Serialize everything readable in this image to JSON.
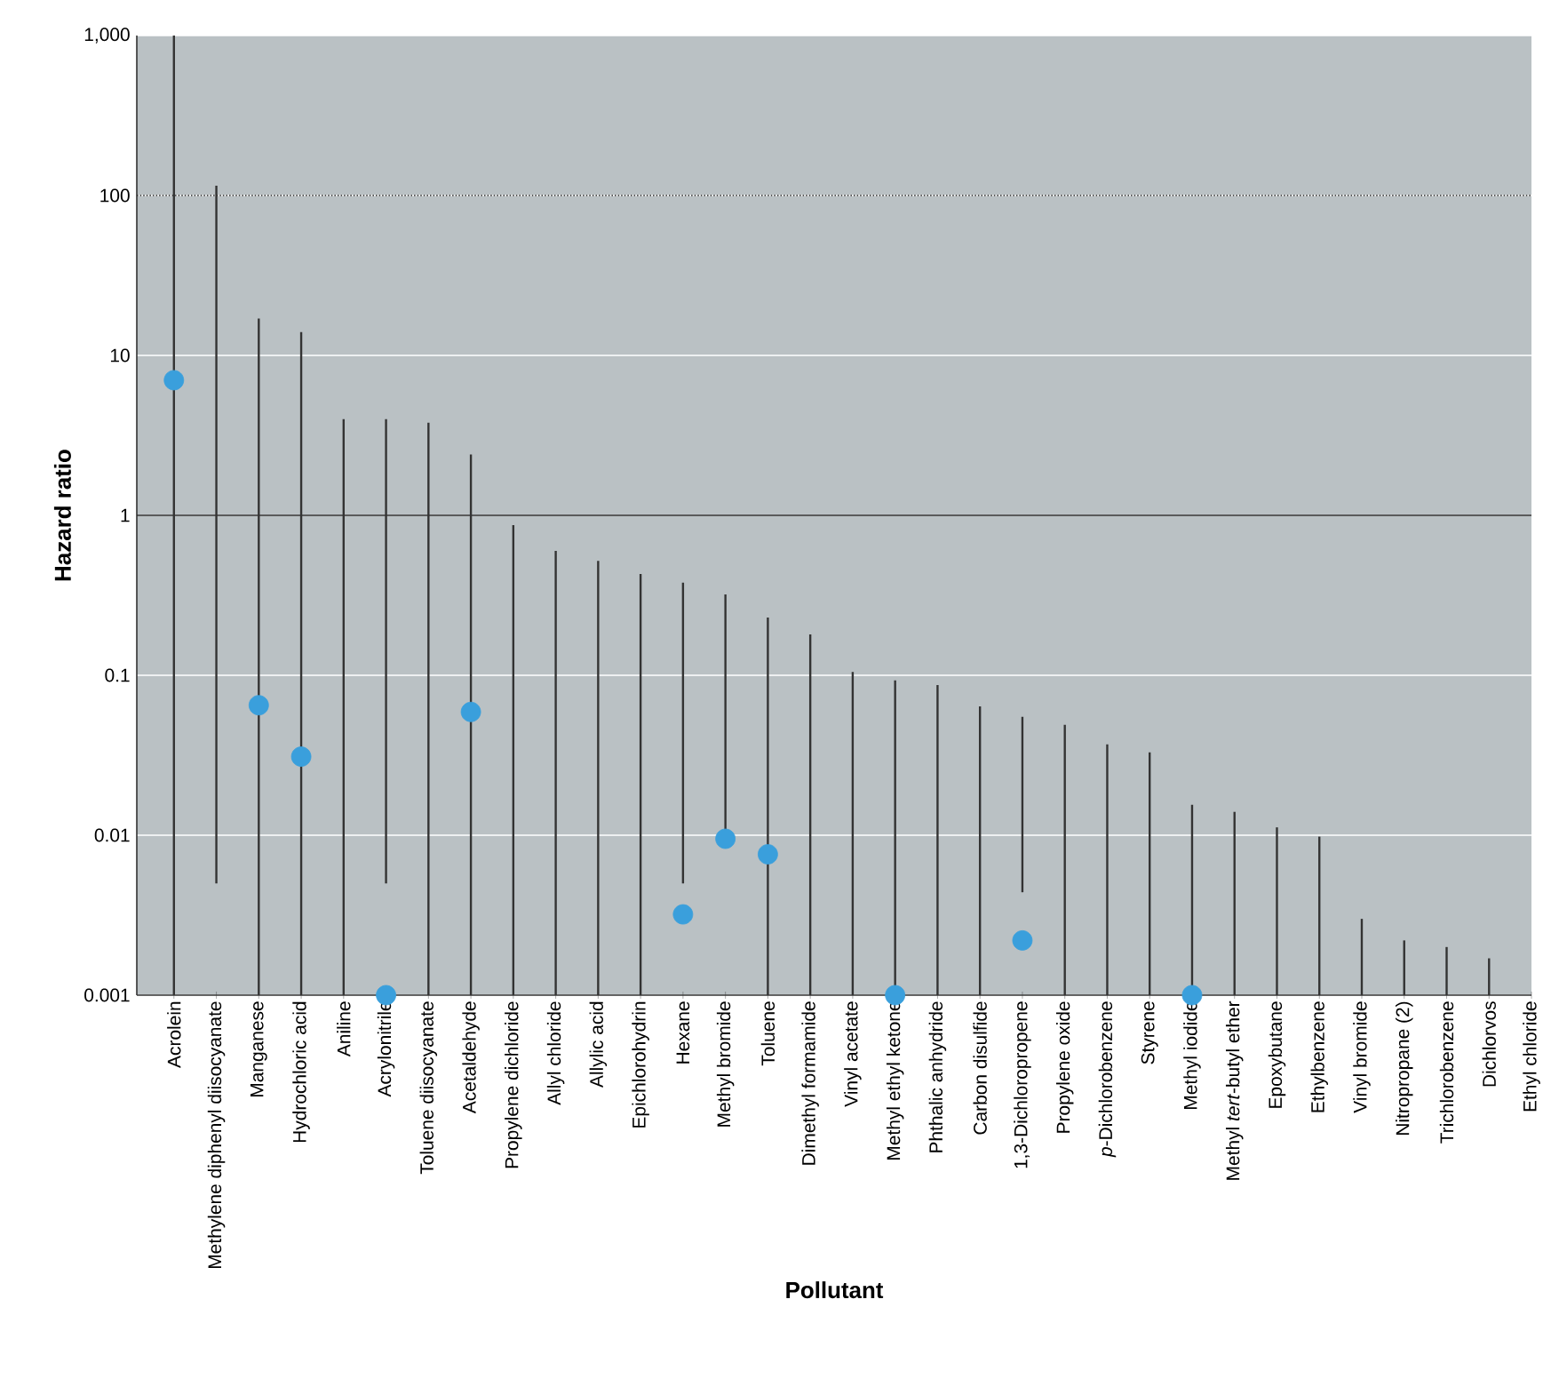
{
  "chart_data": {
    "type": "bar",
    "xlabel": "Pollutant",
    "ylabel": "Hazard ratio",
    "categories": [
      "Acrolein",
      "Methylene diphenyl diisocyanate",
      "Manganese",
      "Hydrochloric acid",
      "Aniline",
      "Acrylonitrile",
      "Toluene diisocyanate",
      "Acetaldehyde",
      "Propylene dichloride",
      "Allyl chloride",
      "Allylic acid",
      "Epichlorohydrin",
      "Hexane",
      "Methyl bromide",
      "Toluene",
      "Dimethyl formamide",
      "Vinyl acetate",
      "Methyl ethyl ketone",
      "Phthalic anhydride",
      "Carbon disulfide",
      "1,3-Dichloropropene",
      "Propylene oxide",
      "*p*-Dichlorobenzene",
      "Styrene",
      "Methyl iodide",
      "Methyl *tert*-butyl ether",
      "Epoxybutane",
      "Ethylbenzene",
      "Vinyl bromide",
      "Nitropropane (2)",
      "Trichlorobenzene",
      "Dichlorvos",
      "Ethyl chloride"
    ],
    "series": [
      {
        "color": "#333333",
        "base": [
          0.001,
          0.005,
          0.001,
          0.001,
          0.001,
          0.005,
          0.001,
          0.001,
          0.001,
          0.001,
          0.001,
          0.001,
          0.005,
          0.01,
          0.001,
          0.001,
          0.001,
          0.001,
          0.001,
          0.001,
          0.0044,
          0.001,
          0.001,
          0.001,
          0.001,
          0.001,
          0.001,
          0.001,
          0.001,
          0.001,
          0.001,
          0.001,
          null
        ],
        "values": [
          999.999,
          114.995,
          16.999,
          13.999,
          3.999,
          3.995,
          3.799,
          2.399,
          0.869,
          0.599,
          0.519,
          0.429,
          0.375,
          0.31,
          0.229,
          0.179,
          0.104,
          0.092,
          0.086,
          0.063,
          0.0506,
          0.048,
          0.036,
          0.032,
          0.0145,
          0.013,
          0.0102,
          0.0088,
          0.002,
          0.0012,
          0.001,
          0.0007,
          null
        ]
      },
      {
        "type": "scatter",
        "color": "#3a9fdc",
        "values": [
          7,
          null,
          0.065,
          0.031,
          null,
          0.001,
          null,
          0.059,
          null,
          null,
          null,
          null,
          0.0032,
          0.0095,
          0.0076,
          null,
          null,
          0.001,
          null,
          null,
          0.0022,
          null,
          null,
          null,
          0.001,
          null,
          null,
          null,
          null,
          null,
          null,
          null,
          null
        ]
      }
    ],
    "log": "y",
    "ylim": [
      0.001,
      1000
    ],
    "yticks": [
      0.001,
      0.01,
      0.1,
      1,
      10,
      100,
      {
        "value": 1000,
        "label": "1,000"
      }
    ],
    "grid": "y",
    "marker": "circle",
    "ref_lines": [
      {
        "axis": "y",
        "value": 1,
        "color": "#2a2a2a",
        "line_style": "solid"
      },
      {
        "axis": "y",
        "value": 100,
        "color": "#2a2a2a",
        "line_style": "dotted"
      }
    ]
  }
}
